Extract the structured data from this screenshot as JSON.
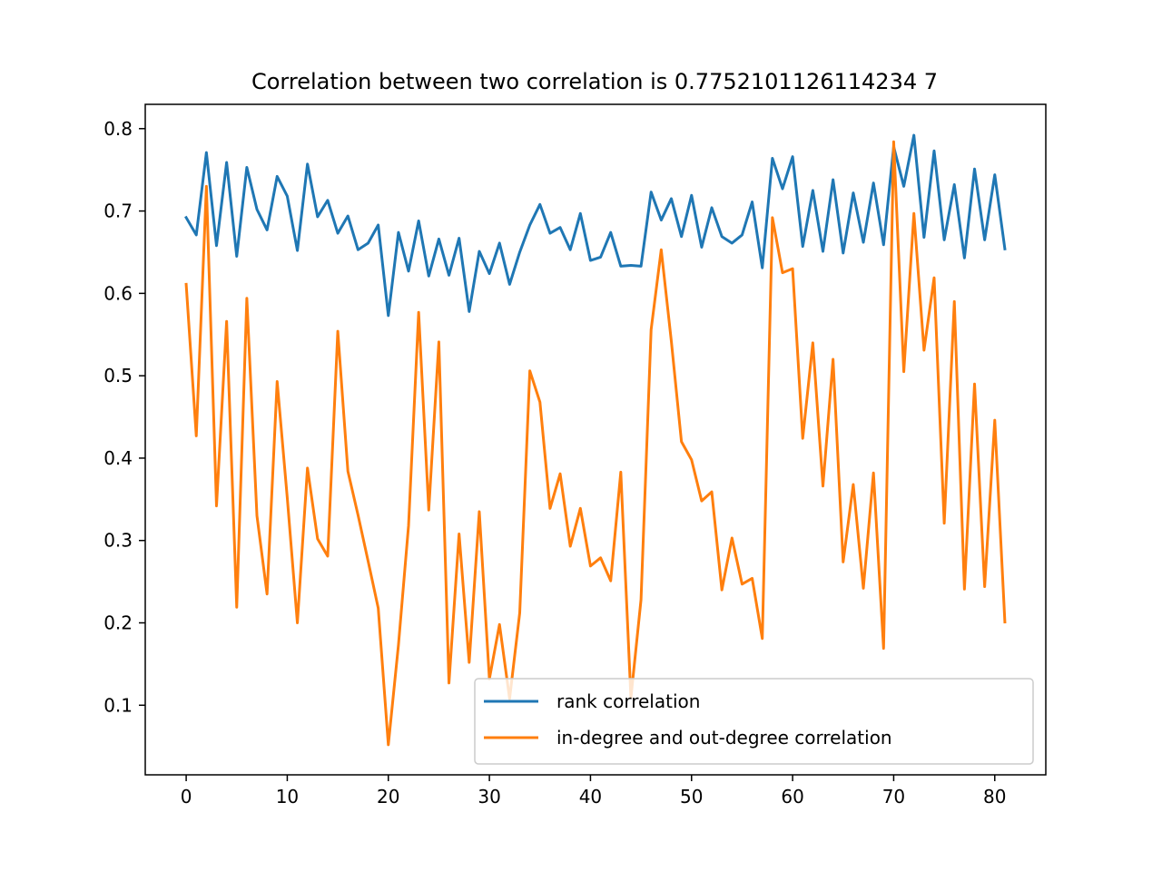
{
  "chart_data": {
    "type": "line",
    "title": "Correlation between two correlation is 0.7752101126114234 7",
    "xlim": [
      -4.05,
      85.05
    ],
    "ylim": [
      0.0155,
      0.8295
    ],
    "xticks": [
      0,
      10,
      20,
      30,
      40,
      50,
      60,
      70,
      80
    ],
    "yticks": [
      0.1,
      0.2,
      0.3,
      0.4,
      0.5,
      0.6,
      0.7,
      0.8
    ],
    "ytick_labels": [
      "0.1",
      "0.2",
      "0.3",
      "0.4",
      "0.5",
      "0.6",
      "0.7",
      "0.8"
    ],
    "grid": false,
    "legend_position": "lower-right",
    "x": [
      0,
      1,
      2,
      3,
      4,
      5,
      6,
      7,
      8,
      9,
      10,
      11,
      12,
      13,
      14,
      15,
      16,
      17,
      18,
      19,
      20,
      21,
      22,
      23,
      24,
      25,
      26,
      27,
      28,
      29,
      30,
      31,
      32,
      33,
      34,
      35,
      36,
      37,
      38,
      39,
      40,
      41,
      42,
      43,
      44,
      45,
      46,
      47,
      48,
      49,
      50,
      51,
      52,
      53,
      54,
      55,
      56,
      57,
      58,
      59,
      60,
      61,
      62,
      63,
      64,
      65,
      66,
      67,
      68,
      69,
      70,
      71,
      72,
      73,
      74,
      75,
      76,
      77,
      78,
      79,
      80,
      81
    ],
    "series": [
      {
        "name": "rank correlation",
        "color": "#1f77b4",
        "values": [
          0.692,
          0.671,
          0.771,
          0.658,
          0.759,
          0.645,
          0.753,
          0.702,
          0.677,
          0.742,
          0.718,
          0.652,
          0.757,
          0.693,
          0.713,
          0.673,
          0.694,
          0.653,
          0.661,
          0.683,
          0.573,
          0.674,
          0.627,
          0.688,
          0.621,
          0.666,
          0.622,
          0.667,
          0.578,
          0.651,
          0.624,
          0.661,
          0.611,
          0.65,
          0.683,
          0.708,
          0.673,
          0.68,
          0.653,
          0.697,
          0.64,
          0.644,
          0.674,
          0.633,
          0.634,
          0.633,
          0.723,
          0.689,
          0.715,
          0.669,
          0.719,
          0.656,
          0.704,
          0.669,
          0.661,
          0.671,
          0.711,
          0.631,
          0.764,
          0.727,
          0.766,
          0.657,
          0.725,
          0.651,
          0.738,
          0.649,
          0.722,
          0.662,
          0.734,
          0.659,
          0.778,
          0.73,
          0.792,
          0.668,
          0.773,
          0.665,
          0.732,
          0.643,
          0.751,
          0.665,
          0.744,
          0.654
        ]
      },
      {
        "name": "in-degree and out-degree correlation",
        "color": "#ff7f0e",
        "values": [
          0.611,
          0.427,
          0.73,
          0.342,
          0.566,
          0.219,
          0.594,
          0.33,
          0.235,
          0.493,
          0.352,
          0.2,
          0.388,
          0.302,
          0.281,
          0.554,
          0.384,
          0.331,
          0.275,
          0.218,
          0.052,
          0.173,
          0.318,
          0.577,
          0.337,
          0.541,
          0.127,
          0.308,
          0.152,
          0.335,
          0.132,
          0.198,
          0.108,
          0.212,
          0.506,
          0.468,
          0.339,
          0.381,
          0.293,
          0.339,
          0.269,
          0.279,
          0.251,
          0.383,
          0.109,
          0.228,
          0.556,
          0.653,
          0.542,
          0.42,
          0.398,
          0.348,
          0.359,
          0.24,
          0.303,
          0.247,
          0.254,
          0.181,
          0.692,
          0.625,
          0.63,
          0.424,
          0.54,
          0.366,
          0.52,
          0.274,
          0.368,
          0.242,
          0.382,
          0.169,
          0.784,
          0.505,
          0.697,
          0.531,
          0.619,
          0.321,
          0.59,
          0.241,
          0.49,
          0.244,
          0.446,
          0.201
        ]
      }
    ]
  }
}
